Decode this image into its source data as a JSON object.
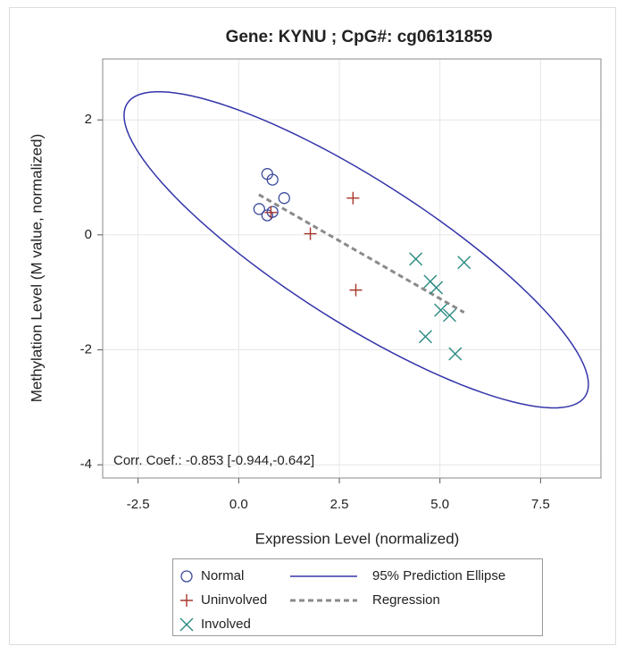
{
  "chart_data": {
    "type": "scatter",
    "title": "Gene: KYNU ; CpG#: cg06131859",
    "x_label": "Expression Level (normalized)",
    "y_label": "Methylation Level (M value, normalized)",
    "annotation": "Corr. Coef.: -0.853 [-0.944,-0.642]",
    "xlim": [
      -3.38,
      9.0
    ],
    "ylim": [
      -4.23,
      3.06
    ],
    "xticks": [
      {
        "value": -2.5,
        "label": "-2.5"
      },
      {
        "value": 0,
        "label": "0.0"
      },
      {
        "value": 2.5,
        "label": "2.5"
      },
      {
        "value": 5,
        "label": "5.0"
      },
      {
        "value": 7.5,
        "label": "7.5"
      }
    ],
    "yticks": [
      -4,
      -2,
      0,
      2
    ],
    "grid": true,
    "series": [
      {
        "name": "Normal",
        "color": "#3b4a9a",
        "marker": "circle",
        "x": [
          0.71,
          0.84,
          1.13,
          0.51,
          0.71,
          0.84
        ],
        "values": [
          1.06,
          0.96,
          0.64,
          0.45,
          0.34,
          0.4
        ]
      },
      {
        "name": "Uninvolved",
        "color": "#a8362b",
        "marker": "plus",
        "x": [
          2.84,
          1.78,
          2.91,
          0.8
        ],
        "values": [
          0.64,
          0.02,
          -0.96,
          0.39
        ]
      },
      {
        "name": "Involved",
        "color": "#2a8a80",
        "marker": "cross",
        "x": [
          4.4,
          5.6,
          4.76,
          4.91,
          5.02,
          5.24,
          4.64,
          5.38
        ],
        "values": [
          -0.42,
          -0.48,
          -0.81,
          -0.92,
          -1.31,
          -1.4,
          -1.77,
          -2.07
        ]
      }
    ],
    "ellipse": {
      "name": "95% Prediction Ellipse",
      "color": "#3535aa",
      "center": [
        2.92,
        -0.26
      ],
      "axis1": [
        5.77,
        -2.34
      ],
      "axis2": [
        0,
        1.445
      ]
    },
    "regression": {
      "name": "Regression",
      "color": "#8a8a8a",
      "x": [
        0.5,
        5.6
      ],
      "values": [
        0.7,
        -1.35
      ]
    }
  }
}
